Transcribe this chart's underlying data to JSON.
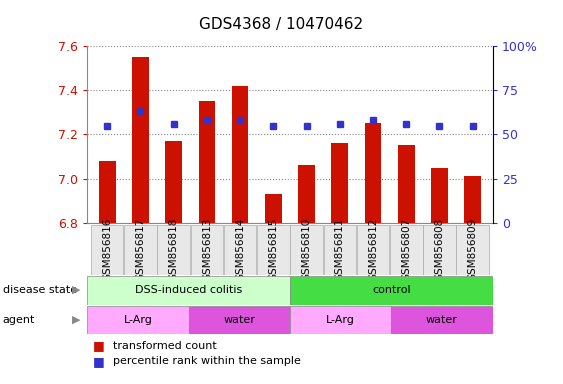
{
  "title": "GDS4368 / 10470462",
  "samples": [
    "GSM856816",
    "GSM856817",
    "GSM856818",
    "GSM856813",
    "GSM856814",
    "GSM856815",
    "GSM856810",
    "GSM856811",
    "GSM856812",
    "GSM856807",
    "GSM856808",
    "GSM856809"
  ],
  "bar_values": [
    7.08,
    7.55,
    7.17,
    7.35,
    7.42,
    6.93,
    7.06,
    7.16,
    7.25,
    7.15,
    7.05,
    7.01
  ],
  "percentile_values": [
    55,
    63,
    56,
    58,
    58,
    55,
    55,
    56,
    58,
    56,
    55,
    55
  ],
  "ylim_left": [
    6.8,
    7.6
  ],
  "ylim_right": [
    0,
    100
  ],
  "yticks_left": [
    6.8,
    7.0,
    7.2,
    7.4,
    7.6
  ],
  "yticks_right": [
    0,
    25,
    50,
    75,
    100
  ],
  "ytick_labels_right": [
    "0",
    "25",
    "50",
    "75",
    "100%"
  ],
  "bar_color": "#cc1100",
  "dot_color": "#3333cc",
  "bar_bottom": 6.8,
  "disease_state_groups": [
    {
      "label": "DSS-induced colitis",
      "start": 0,
      "end": 6,
      "color": "#ccffcc"
    },
    {
      "label": "control",
      "start": 6,
      "end": 12,
      "color": "#44dd44"
    }
  ],
  "agent_groups": [
    {
      "label": "L-Arg",
      "start": 0,
      "end": 3,
      "color": "#ffaaff"
    },
    {
      "label": "water",
      "start": 3,
      "end": 6,
      "color": "#dd55dd"
    },
    {
      "label": "L-Arg",
      "start": 6,
      "end": 9,
      "color": "#ffaaff"
    },
    {
      "label": "water",
      "start": 9,
      "end": 12,
      "color": "#dd55dd"
    }
  ],
  "legend_red_label": "transformed count",
  "legend_blue_label": "percentile rank within the sample",
  "grid_color": "#888888",
  "grid_linestyle": ":",
  "bar_width": 0.5,
  "dot_marker": "s",
  "dot_size": 5,
  "title_fontsize": 11,
  "axis_fontsize": 9,
  "tick_label_fontsize": 7.5,
  "annot_fontsize": 8,
  "legend_fontsize": 8
}
